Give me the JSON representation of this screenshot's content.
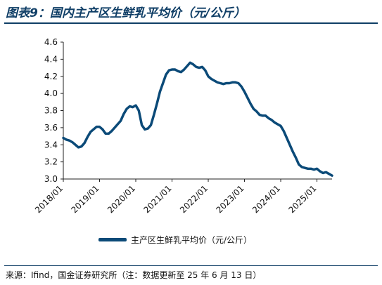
{
  "title": "图表9：国内主产区生鲜乳平均价（元/公斤）",
  "source": "来源：Ifind，国金证券研究所（注：数据更新至 25 年 6 月 13 日）",
  "colors": {
    "line": "#0b4a78",
    "title": "#0f3e66",
    "axis": "#222222"
  },
  "chart_data": {
    "type": "line",
    "title": "",
    "xlabel": "",
    "ylabel": "",
    "legend_position": "bottom",
    "grid": false,
    "ylim": [
      3.0,
      4.6
    ],
    "yticks": [
      3.0,
      3.2,
      3.4,
      3.6,
      3.8,
      4.0,
      4.2,
      4.4,
      4.6
    ],
    "yticklabels": [
      "3.0",
      "3.2",
      "3.4",
      "3.6",
      "3.8",
      "4.0",
      "4.2",
      "4.4",
      "4.6"
    ],
    "xlim": [
      "2018/01",
      "2025/06"
    ],
    "xticklabels": [
      "2018/01",
      "2019/01",
      "2020/01",
      "2021/01",
      "2022/01",
      "2023/01",
      "2024/01",
      "2025/01"
    ],
    "series": [
      {
        "name": "主产区生鲜乳平均价（元/公斤）",
        "color": "#0b4a78",
        "x": [
          "2018/01",
          "2018/02",
          "2018/03",
          "2018/04",
          "2018/05",
          "2018/06",
          "2018/07",
          "2018/08",
          "2018/09",
          "2018/10",
          "2018/11",
          "2018/12",
          "2019/01",
          "2019/02",
          "2019/03",
          "2019/04",
          "2019/05",
          "2019/06",
          "2019/07",
          "2019/08",
          "2019/09",
          "2019/10",
          "2019/11",
          "2019/12",
          "2020/01",
          "2020/02",
          "2020/03",
          "2020/04",
          "2020/05",
          "2020/06",
          "2020/07",
          "2020/08",
          "2020/09",
          "2020/10",
          "2020/11",
          "2020/12",
          "2021/01",
          "2021/02",
          "2021/03",
          "2021/04",
          "2021/05",
          "2021/06",
          "2021/07",
          "2021/08",
          "2021/09",
          "2021/10",
          "2021/11",
          "2021/12",
          "2022/01",
          "2022/02",
          "2022/03",
          "2022/04",
          "2022/05",
          "2022/06",
          "2022/07",
          "2022/08",
          "2022/09",
          "2022/10",
          "2022/11",
          "2022/12",
          "2023/01",
          "2023/02",
          "2023/03",
          "2023/04",
          "2023/05",
          "2023/06",
          "2023/07",
          "2023/08",
          "2023/09",
          "2023/10",
          "2023/11",
          "2023/12",
          "2024/01",
          "2024/02",
          "2024/03",
          "2024/04",
          "2024/05",
          "2024/06",
          "2024/07",
          "2024/08",
          "2024/09",
          "2024/10",
          "2024/11",
          "2024/12",
          "2025/01",
          "2025/02",
          "2025/03",
          "2025/04",
          "2025/05",
          "2025/06"
        ],
        "values": [
          3.48,
          3.46,
          3.45,
          3.43,
          3.4,
          3.37,
          3.38,
          3.42,
          3.49,
          3.55,
          3.58,
          3.61,
          3.61,
          3.58,
          3.53,
          3.53,
          3.56,
          3.6,
          3.64,
          3.68,
          3.76,
          3.82,
          3.85,
          3.84,
          3.86,
          3.8,
          3.63,
          3.58,
          3.59,
          3.63,
          3.75,
          3.88,
          4.02,
          4.12,
          4.22,
          4.27,
          4.28,
          4.28,
          4.26,
          4.25,
          4.28,
          4.32,
          4.36,
          4.34,
          4.31,
          4.3,
          4.31,
          4.27,
          4.2,
          4.17,
          4.15,
          4.13,
          4.12,
          4.11,
          4.12,
          4.12,
          4.13,
          4.13,
          4.12,
          4.08,
          4.02,
          3.95,
          3.88,
          3.82,
          3.79,
          3.75,
          3.74,
          3.74,
          3.71,
          3.69,
          3.66,
          3.64,
          3.62,
          3.56,
          3.48,
          3.4,
          3.32,
          3.25,
          3.17,
          3.14,
          3.13,
          3.12,
          3.12,
          3.11,
          3.12,
          3.09,
          3.07,
          3.08,
          3.06,
          3.04
        ]
      }
    ]
  }
}
